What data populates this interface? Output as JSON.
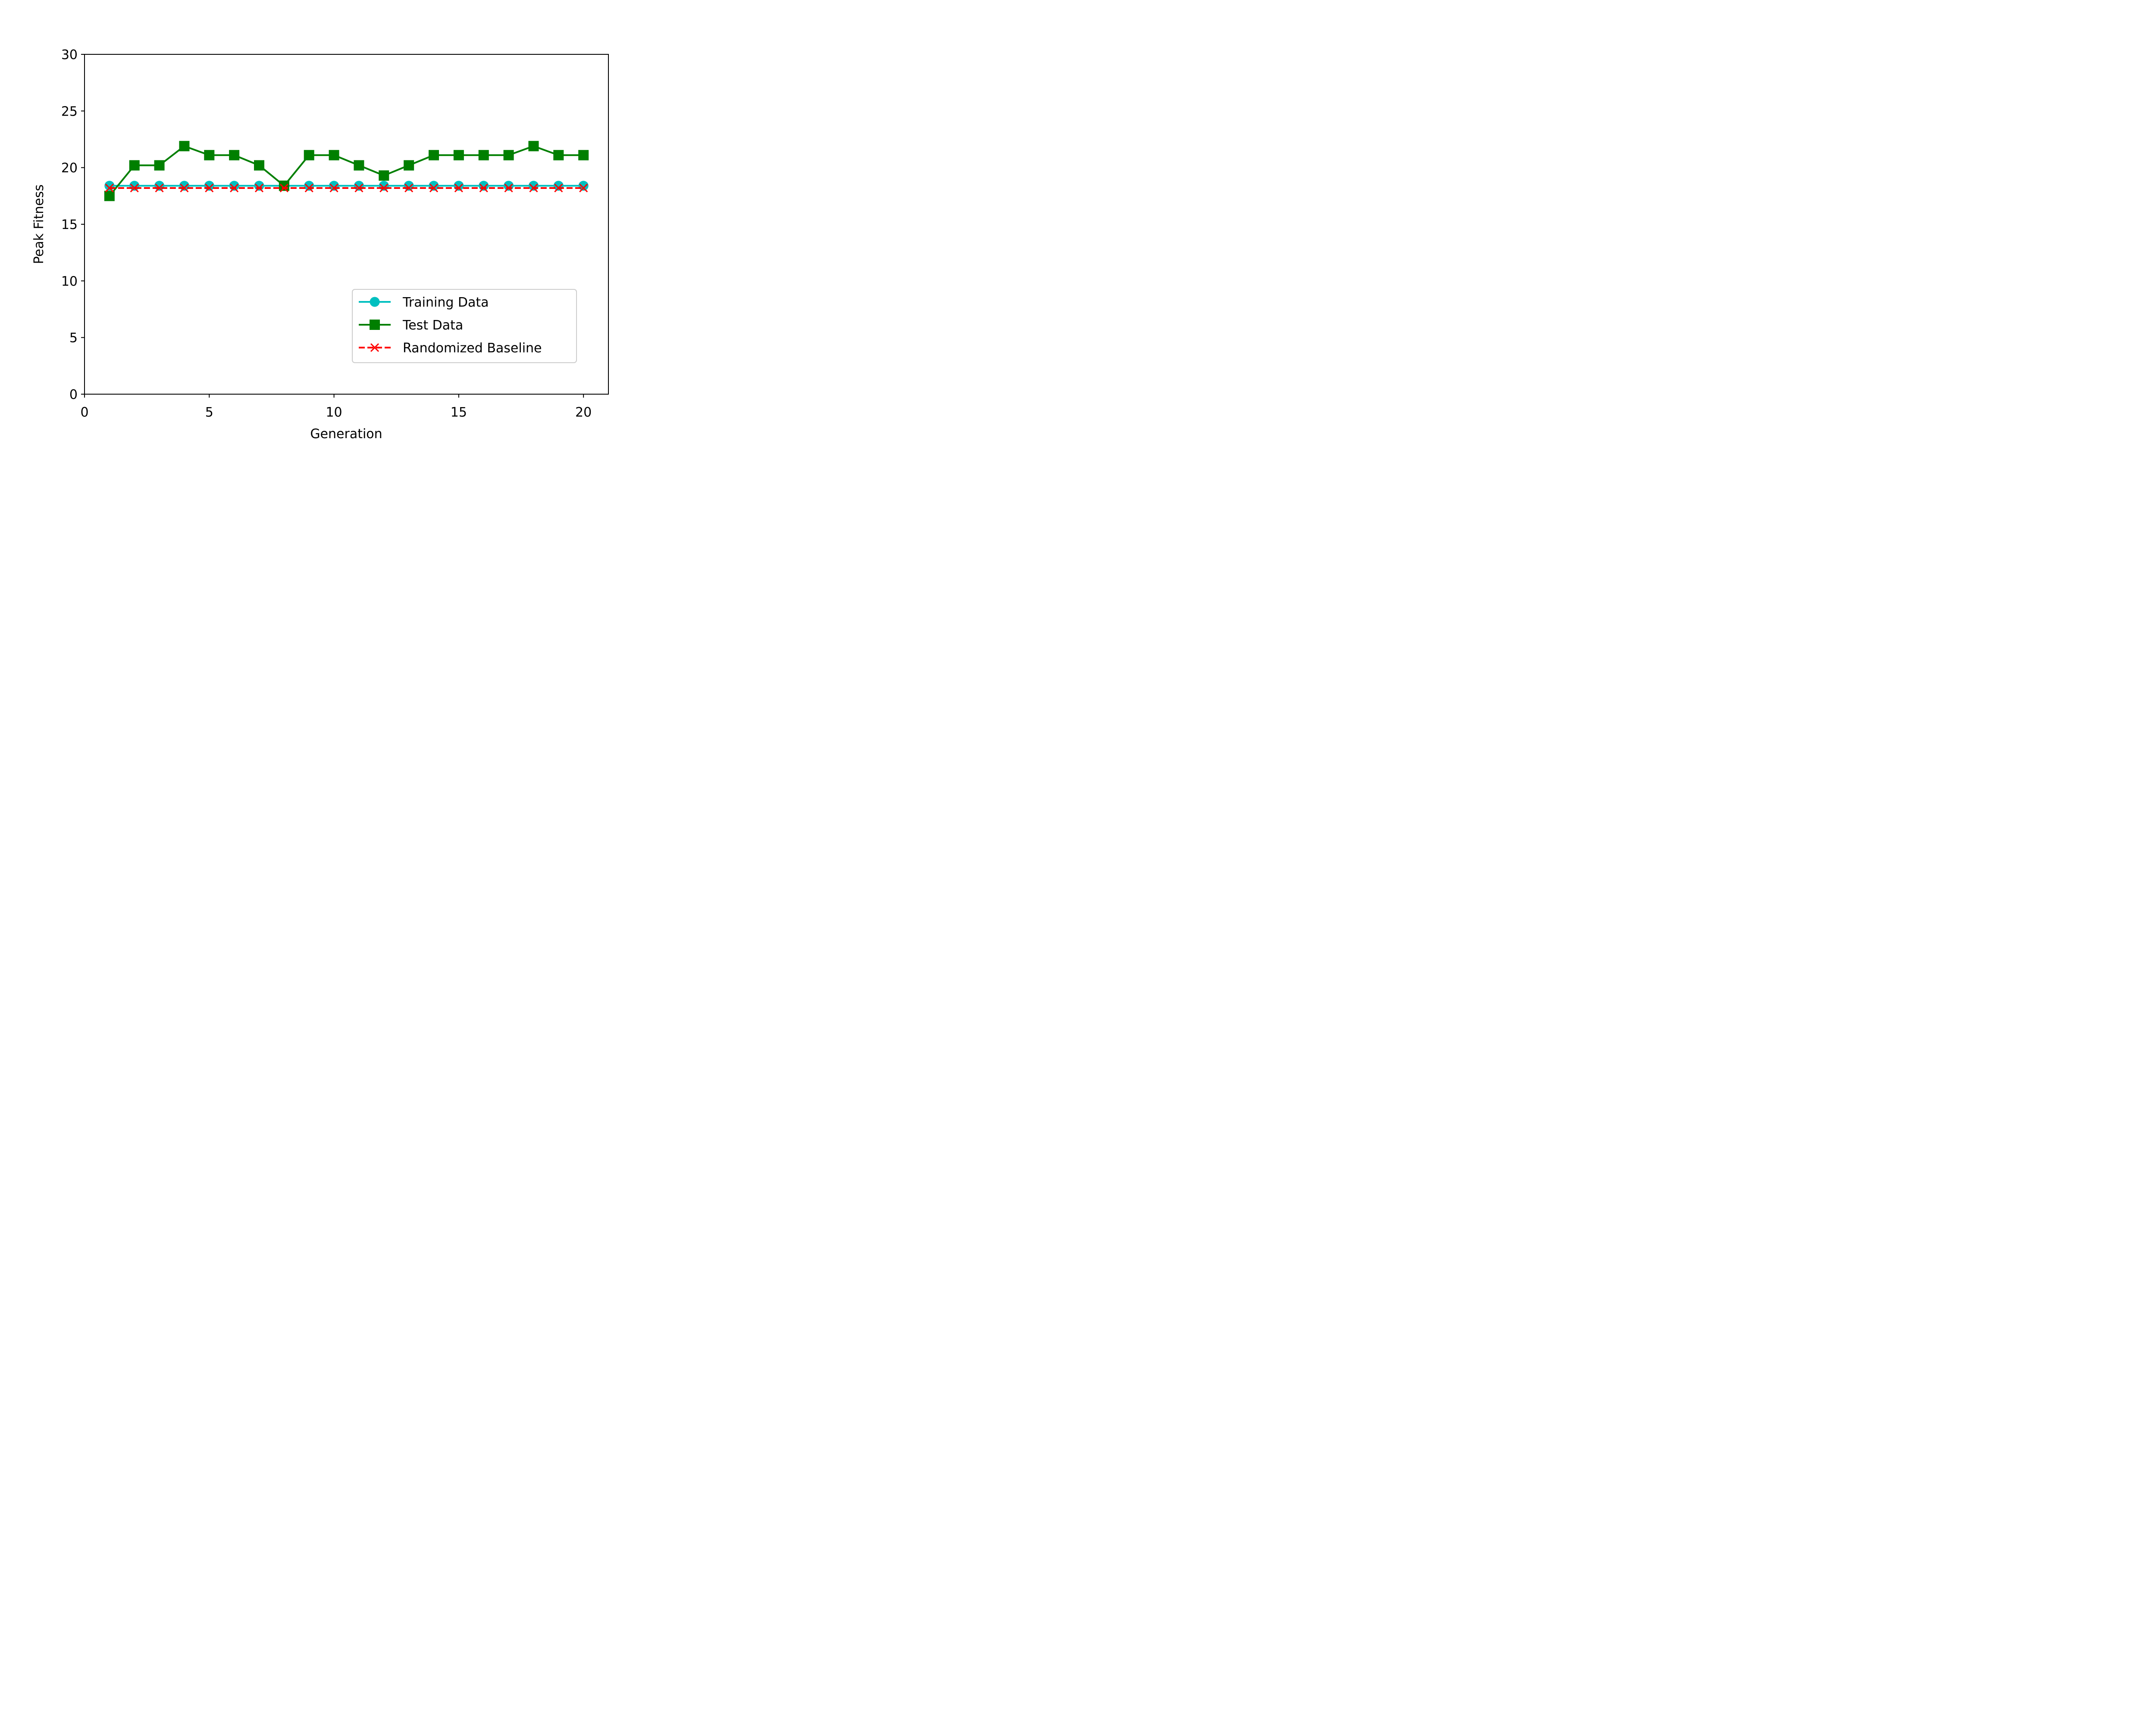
{
  "chart_data": {
    "type": "line",
    "xlabel": "Generation",
    "ylabel": "Peak Fitness",
    "xlim": [
      0,
      21
    ],
    "ylim": [
      0,
      30
    ],
    "xticks": [
      0,
      5,
      10,
      15,
      20
    ],
    "yticks": [
      0,
      5,
      10,
      15,
      20,
      25,
      30
    ],
    "grid": false,
    "legend": "lower-right",
    "x": [
      1,
      2,
      3,
      4,
      5,
      6,
      7,
      8,
      9,
      10,
      11,
      12,
      13,
      14,
      15,
      16,
      17,
      18,
      19,
      20
    ],
    "series": [
      {
        "name": "Training Data",
        "color": "#00bfbf",
        "marker": "circle",
        "line": "solid",
        "values": [
          18.4,
          18.4,
          18.4,
          18.4,
          18.4,
          18.4,
          18.4,
          18.4,
          18.4,
          18.4,
          18.4,
          18.4,
          18.4,
          18.4,
          18.4,
          18.4,
          18.4,
          18.4,
          18.4,
          18.4
        ]
      },
      {
        "name": "Test Data",
        "color": "#007f00",
        "marker": "square",
        "line": "solid",
        "values": [
          17.5,
          20.2,
          20.2,
          21.9,
          21.1,
          21.1,
          20.2,
          18.4,
          21.1,
          21.1,
          20.2,
          19.3,
          20.2,
          21.1,
          21.1,
          21.1,
          21.1,
          21.9,
          21.1,
          21.1
        ]
      },
      {
        "name": "Randomized Baseline",
        "color": "#ff0000",
        "marker": "x",
        "line": "dashed",
        "values": [
          18.2,
          18.2,
          18.2,
          18.2,
          18.2,
          18.2,
          18.2,
          18.2,
          18.2,
          18.2,
          18.2,
          18.2,
          18.2,
          18.2,
          18.2,
          18.2,
          18.2,
          18.2,
          18.2,
          18.2
        ]
      }
    ]
  }
}
